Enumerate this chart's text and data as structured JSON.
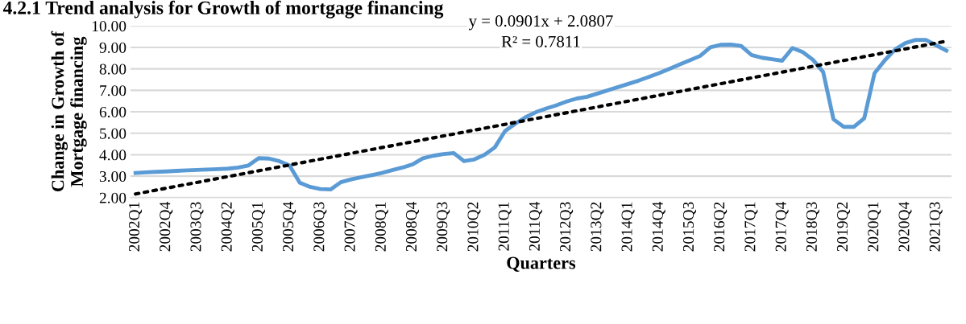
{
  "chart_data": {
    "type": "line",
    "title": "4.2.1 Trend analysis for Growth of mortgage financing",
    "xlabel": "Quarters",
    "ylabel": "Change in Growth of\nMortgage financing",
    "categories": [
      "2002Q1",
      null,
      null,
      "2002Q4",
      null,
      null,
      "2003Q3",
      null,
      null,
      "2004Q2",
      null,
      null,
      "2005Q1",
      null,
      null,
      "2005Q4",
      null,
      null,
      "2006Q3",
      null,
      null,
      "2007Q2",
      null,
      null,
      "2008Q1",
      null,
      null,
      "2008Q4",
      null,
      null,
      "2009Q3",
      null,
      null,
      "2010Q2",
      null,
      null,
      "2011Q1",
      null,
      null,
      "2011Q4",
      null,
      null,
      "2012Q3",
      null,
      null,
      "2013Q2",
      null,
      null,
      "2014Q1",
      null,
      null,
      "2014Q4",
      null,
      null,
      "2015Q3",
      null,
      null,
      "2016Q2",
      null,
      null,
      "2017Q1",
      null,
      null,
      "2017Q4",
      null,
      null,
      "2018Q3",
      null,
      null,
      "2019Q2",
      null,
      null,
      "2020Q1",
      null,
      null,
      "2020Q4",
      null,
      null,
      "2021Q3",
      null
    ],
    "series": [
      {
        "color": "#5b9bd5",
        "line_style": "solid",
        "values": [
          3.15,
          3.18,
          3.2,
          3.22,
          3.25,
          3.27,
          3.29,
          3.31,
          3.33,
          3.35,
          3.4,
          3.5,
          3.84,
          3.82,
          3.7,
          3.5,
          2.7,
          2.5,
          2.4,
          2.38,
          2.72,
          2.85,
          2.95,
          3.05,
          3.15,
          3.28,
          3.4,
          3.55,
          3.83,
          3.95,
          4.03,
          4.08,
          3.7,
          3.78,
          4.0,
          4.34,
          5.1,
          5.45,
          5.75,
          5.98,
          6.15,
          6.3,
          6.48,
          6.62,
          6.7,
          6.85,
          7.0,
          7.15,
          7.3,
          7.45,
          7.62,
          7.8,
          8.0,
          8.2,
          8.4,
          8.6,
          9.0,
          9.12,
          9.13,
          9.07,
          8.65,
          8.52,
          8.45,
          8.38,
          8.97,
          8.78,
          8.42,
          7.85,
          5.65,
          5.3,
          5.3,
          5.7,
          7.8,
          8.4,
          8.9,
          9.2,
          9.35,
          9.35,
          9.1,
          8.85
        ]
      },
      {
        "color": "#000000",
        "line_style": "dotted",
        "values": [
          2.17,
          null,
          null,
          null,
          null,
          null,
          null,
          null,
          null,
          null,
          null,
          null,
          null,
          null,
          null,
          null,
          null,
          null,
          null,
          null,
          null,
          null,
          null,
          null,
          null,
          null,
          null,
          null,
          null,
          null,
          null,
          null,
          null,
          null,
          null,
          null,
          null,
          null,
          null,
          null,
          null,
          null,
          null,
          null,
          null,
          null,
          null,
          null,
          null,
          null,
          null,
          null,
          null,
          null,
          null,
          null,
          null,
          null,
          null,
          null,
          null,
          null,
          null,
          null,
          null,
          null,
          null,
          null,
          null,
          null,
          null,
          null,
          null,
          null,
          null,
          null,
          null,
          null,
          null,
          9.29
        ]
      }
    ],
    "ylim": [
      2,
      10
    ],
    "yticks": [
      {
        "value": 2,
        "label": "2.00"
      },
      {
        "value": 3,
        "label": "3.00"
      },
      {
        "value": 4,
        "label": "4.00"
      },
      {
        "value": 5,
        "label": "5.00"
      },
      {
        "value": 6,
        "label": "6.00"
      },
      {
        "value": 7,
        "label": "7.00"
      },
      {
        "value": 8,
        "label": "8.00"
      },
      {
        "value": 9,
        "label": "9.00"
      },
      {
        "value": 10,
        "label": "10.00"
      }
    ],
    "grid": "y",
    "marker": "none",
    "annotations": [
      "y = 0.0901x + 2.0807",
      "R² = 0.7811"
    ]
  }
}
